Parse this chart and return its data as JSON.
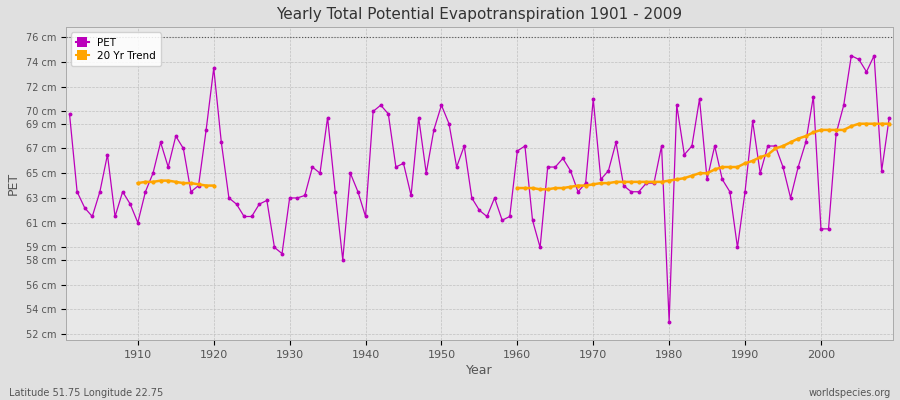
{
  "title": "Yearly Total Potential Evapotranspiration 1901 - 2009",
  "xlabel": "Year",
  "ylabel": "PET",
  "subtitle_left": "Latitude 51.75 Longitude 22.75",
  "subtitle_right": "worldspecies.org",
  "pet_color": "#bb00bb",
  "trend_color": "#ffa500",
  "fig_bg_color": "#e0e0e0",
  "plot_bg_color": "#e8e8e8",
  "years": [
    1901,
    1902,
    1903,
    1904,
    1905,
    1906,
    1907,
    1908,
    1909,
    1910,
    1911,
    1912,
    1913,
    1914,
    1915,
    1916,
    1917,
    1918,
    1919,
    1920,
    1921,
    1922,
    1923,
    1924,
    1925,
    1926,
    1927,
    1928,
    1929,
    1930,
    1931,
    1932,
    1933,
    1934,
    1935,
    1936,
    1937,
    1938,
    1939,
    1940,
    1941,
    1942,
    1943,
    1944,
    1945,
    1946,
    1947,
    1948,
    1949,
    1950,
    1951,
    1952,
    1953,
    1954,
    1955,
    1956,
    1957,
    1958,
    1959,
    1960,
    1961,
    1962,
    1963,
    1964,
    1965,
    1966,
    1967,
    1968,
    1969,
    1970,
    1971,
    1972,
    1973,
    1974,
    1975,
    1976,
    1977,
    1978,
    1979,
    1980,
    1981,
    1982,
    1983,
    1984,
    1985,
    1986,
    1987,
    1988,
    1989,
    1990,
    1991,
    1992,
    1993,
    1994,
    1995,
    1996,
    1997,
    1998,
    1999,
    2000,
    2001,
    2002,
    2003,
    2004,
    2005,
    2006,
    2007,
    2008,
    2009
  ],
  "pet_values": [
    69.8,
    63.5,
    62.2,
    61.5,
    63.5,
    66.5,
    61.5,
    63.5,
    62.5,
    61.0,
    63.5,
    65.0,
    67.5,
    65.5,
    68.0,
    67.0,
    63.5,
    64.0,
    68.5,
    73.5,
    67.5,
    63.0,
    62.5,
    61.5,
    61.5,
    62.5,
    62.8,
    59.0,
    58.5,
    63.0,
    63.0,
    63.2,
    65.5,
    65.0,
    69.5,
    63.5,
    58.0,
    65.0,
    63.5,
    61.5,
    70.0,
    70.5,
    69.8,
    65.5,
    65.8,
    63.2,
    69.5,
    65.0,
    68.5,
    70.5,
    69.0,
    65.5,
    67.2,
    63.0,
    62.0,
    61.5,
    63.0,
    61.2,
    61.5,
    66.8,
    67.2,
    61.2,
    59.0,
    65.5,
    65.5,
    66.2,
    65.2,
    63.5,
    64.2,
    71.0,
    64.5,
    65.2,
    67.5,
    64.0,
    63.5,
    63.5,
    64.2,
    64.2,
    67.2,
    53.0,
    70.5,
    66.5,
    67.2,
    71.0,
    64.5,
    67.2,
    64.5,
    63.5,
    59.0,
    63.5,
    69.2,
    65.0,
    67.2,
    67.2,
    65.5,
    63.0,
    65.5,
    67.5,
    71.2,
    60.5,
    60.5,
    68.2,
    70.5,
    74.5,
    74.2,
    73.2,
    74.5,
    65.2,
    69.5
  ],
  "trend_segment1_years": [
    1910,
    1911,
    1912,
    1913,
    1914,
    1915,
    1916,
    1917,
    1918,
    1919,
    1920
  ],
  "trend_segment1_values": [
    64.2,
    64.3,
    64.3,
    64.4,
    64.4,
    64.3,
    64.2,
    64.2,
    64.1,
    64.0,
    64.0
  ],
  "trend_segment2_years": [
    1960,
    1961,
    1962,
    1963,
    1964,
    1965,
    1966,
    1967,
    1968,
    1969,
    1970,
    1971,
    1972,
    1973,
    1974,
    1975,
    1976,
    1977,
    1978,
    1979,
    1980,
    1981,
    1982,
    1983,
    1984,
    1985,
    1986,
    1987,
    1988,
    1989,
    1990,
    1991,
    1992,
    1993,
    1994,
    1995,
    1996,
    1997,
    1998,
    1999,
    2000,
    2001,
    2002,
    2003,
    2004,
    2005,
    2006,
    2007,
    2008,
    2009
  ],
  "trend_segment2_values": [
    63.8,
    63.8,
    63.8,
    63.7,
    63.7,
    63.8,
    63.8,
    63.9,
    64.0,
    64.0,
    64.1,
    64.2,
    64.2,
    64.3,
    64.3,
    64.3,
    64.3,
    64.3,
    64.3,
    64.3,
    64.4,
    64.5,
    64.6,
    64.8,
    65.0,
    65.0,
    65.3,
    65.5,
    65.5,
    65.5,
    65.8,
    66.0,
    66.3,
    66.5,
    67.0,
    67.2,
    67.5,
    67.8,
    68.0,
    68.3,
    68.5,
    68.5,
    68.5,
    68.5,
    68.8,
    69.0,
    69.0,
    69.0,
    69.0,
    69.0
  ],
  "yticks": [
    52,
    54,
    56,
    58,
    59,
    61,
    63,
    65,
    67,
    69,
    70,
    72,
    74,
    76
  ],
  "ytick_labels": [
    "52 cm",
    "54 cm",
    "56 cm",
    "58 cm",
    "59 cm",
    "61 cm",
    "63 cm",
    "65 cm",
    "67 cm",
    "69 cm",
    "70 cm",
    "72 cm",
    "74 cm",
    "76 cm"
  ],
  "ylim": [
    51.5,
    76.8
  ],
  "xlim": [
    1900.5,
    2009.5
  ],
  "xticks": [
    1910,
    1920,
    1930,
    1940,
    1950,
    1960,
    1970,
    1980,
    1990,
    2000
  ]
}
